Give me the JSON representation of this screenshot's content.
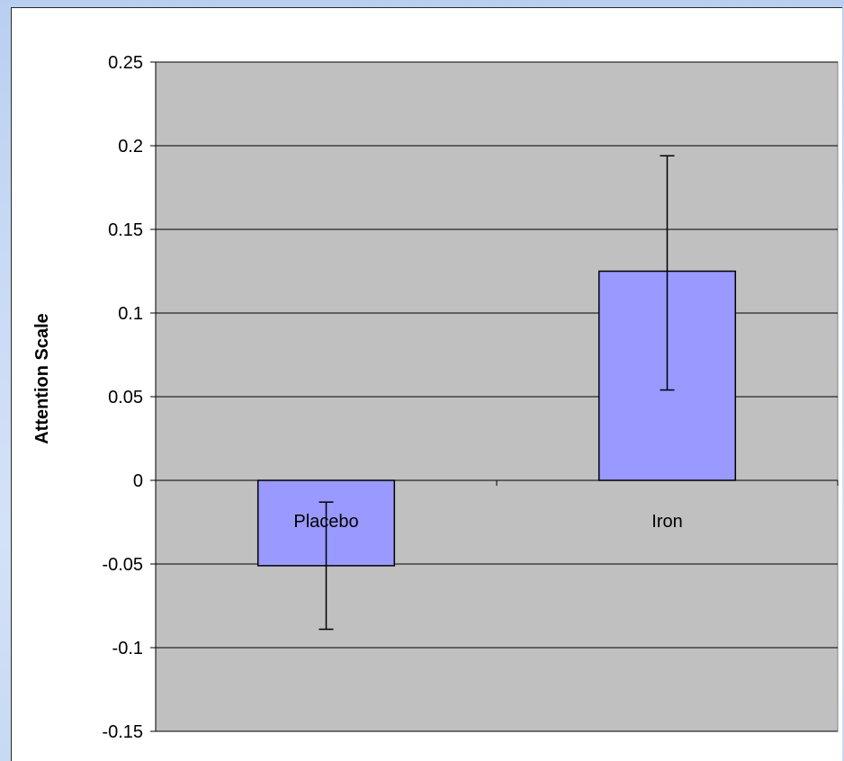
{
  "chart_data": {
    "type": "bar",
    "categories": [
      "Placebo",
      "Iron"
    ],
    "values": [
      -0.051,
      0.125
    ],
    "error_low": [
      -0.089,
      0.054
    ],
    "error_high": [
      -0.013,
      0.194
    ],
    "ylabel": "Attention Scale",
    "xlabel": "",
    "ylim": [
      -0.15,
      0.25
    ],
    "yticks": [
      "0.25",
      "0.2",
      "0.15",
      "0.1",
      "0.05",
      "0",
      "-0.05",
      "-0.1",
      "-0.15"
    ],
    "grid": true,
    "legend": "none",
    "colors": {
      "bar_fill": "#9999ff",
      "plot_bg": "#c0c0c0",
      "gridline": "#000000"
    }
  }
}
